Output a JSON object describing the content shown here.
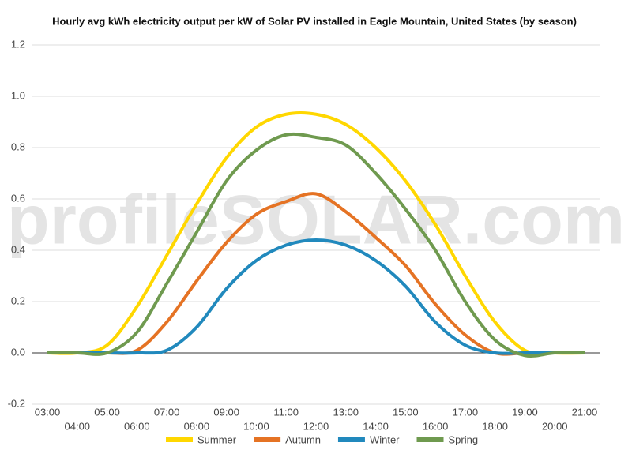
{
  "chart_data": {
    "type": "line",
    "title": "Hourly avg kWh electricity output per kW of Solar PV installed in Eagle Mountain, United States (by season)",
    "watermark": "profileSOLAR.com",
    "categories": [
      "03:00",
      "04:00",
      "05:00",
      "06:00",
      "07:00",
      "08:00",
      "09:00",
      "10:00",
      "11:00",
      "12:00",
      "13:00",
      "14:00",
      "15:00",
      "16:00",
      "17:00",
      "18:00",
      "19:00",
      "20:00",
      "21:00"
    ],
    "series": [
      {
        "name": "Summer",
        "color": "#ffd700",
        "values": [
          0,
          0,
          0.03,
          0.18,
          0.38,
          0.58,
          0.76,
          0.88,
          0.93,
          0.93,
          0.89,
          0.8,
          0.67,
          0.5,
          0.3,
          0.12,
          0.01,
          0,
          0
        ]
      },
      {
        "name": "Autumn",
        "color": "#e57324",
        "values": [
          0,
          0,
          0,
          0.01,
          0.12,
          0.28,
          0.43,
          0.54,
          0.59,
          0.62,
          0.55,
          0.45,
          0.34,
          0.19,
          0.07,
          0,
          0,
          0,
          0
        ]
      },
      {
        "name": "Winter",
        "color": "#2189bd",
        "values": [
          0,
          0,
          0,
          0,
          0.01,
          0.1,
          0.25,
          0.36,
          0.42,
          0.44,
          0.42,
          0.36,
          0.26,
          0.12,
          0.03,
          0,
          0,
          0,
          0
        ]
      },
      {
        "name": "Spring",
        "color": "#6f9a4f",
        "values": [
          0,
          0,
          0,
          0.08,
          0.27,
          0.47,
          0.67,
          0.79,
          0.85,
          0.84,
          0.81,
          0.7,
          0.56,
          0.4,
          0.2,
          0.05,
          -0.01,
          0,
          0
        ]
      }
    ],
    "ylim": [
      -0.2,
      1.2
    ],
    "yticks": [
      -0.2,
      {
        "value": 0,
        "label": "0.0"
      },
      0.2,
      0.4,
      0.6,
      0.8,
      {
        "value": 1,
        "label": "1.0"
      },
      1.2
    ],
    "grid": true
  }
}
